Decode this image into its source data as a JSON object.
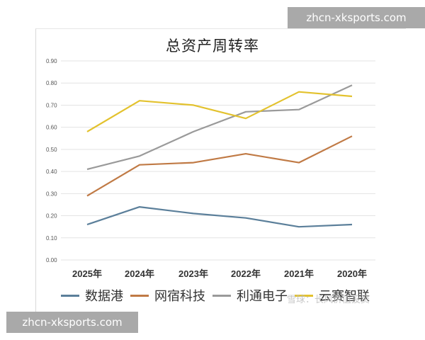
{
  "watermarks": {
    "top": "zhcn-xksports.com",
    "bottom": "zhcn-xksports.com",
    "source": "雪球：长风价值投资"
  },
  "chart_data": {
    "type": "line",
    "title": "总资产周转率",
    "xlabel": "",
    "ylabel": "",
    "categories": [
      "2025年",
      "2024年",
      "2023年",
      "2022年",
      "2021年",
      "2020年"
    ],
    "yticks": [
      "0.00",
      "0.10",
      "0.20",
      "0.30",
      "0.40",
      "0.50",
      "0.60",
      "0.70",
      "0.80",
      "0.90"
    ],
    "ylim": [
      0,
      0.9
    ],
    "grid": true,
    "legend_position": "bottom",
    "series": [
      {
        "name": "数据港",
        "color": "#5b7f9a",
        "values": [
          0.16,
          0.24,
          0.21,
          0.19,
          0.15,
          0.16
        ]
      },
      {
        "name": "网宿科技",
        "color": "#c07a45",
        "values": [
          0.29,
          0.43,
          0.44,
          0.48,
          0.44,
          0.56
        ]
      },
      {
        "name": "利通电子",
        "color": "#9a9a9a",
        "values": [
          0.41,
          0.47,
          0.58,
          0.67,
          0.68,
          0.79
        ]
      },
      {
        "name": "云赛智联",
        "color": "#e3c22e",
        "values": [
          0.58,
          0.72,
          0.7,
          0.64,
          0.76,
          0.74
        ]
      }
    ]
  }
}
